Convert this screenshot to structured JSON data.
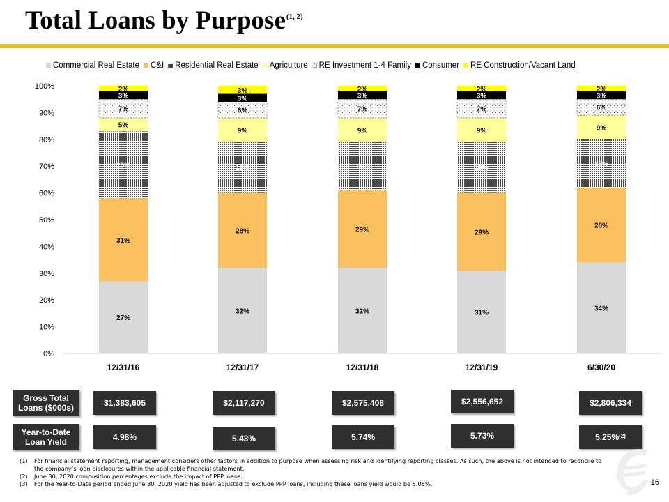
{
  "slide": {
    "title": "Total Loans by Purpose",
    "title_sup": "(1, 2)",
    "page_number": "16"
  },
  "chart_data": {
    "type": "bar",
    "stacked": true,
    "categories": [
      "12/31/16",
      "12/31/17",
      "12/31/18",
      "12/31/19",
      "6/30/20"
    ],
    "series": [
      {
        "name": "Commercial Real Estate",
        "values": [
          27,
          32,
          32,
          31,
          34
        ],
        "labels": [
          "27%",
          "32%",
          "32%",
          "31%",
          "34%"
        ],
        "color": "#d9d9d9",
        "pattern": "none"
      },
      {
        "name": "C&I",
        "values": [
          31,
          28,
          29,
          29,
          28
        ],
        "labels": [
          "31%",
          "28%",
          "29%",
          "29%",
          "28%"
        ],
        "color": "#fac05e",
        "pattern": "none"
      },
      {
        "name": "Residential Real Estate",
        "values": [
          25,
          19,
          18,
          19,
          18
        ],
        "labels": [
          "25%",
          "19%",
          "18%",
          "19%",
          "18%"
        ],
        "color": "#595959",
        "pattern": "dense-dots"
      },
      {
        "name": "Agriculture",
        "values": [
          5,
          9,
          9,
          9,
          9
        ],
        "labels": [
          "5%",
          "9%",
          "9%",
          "9%",
          "9%"
        ],
        "color": "#ffff99",
        "pattern": "none"
      },
      {
        "name": "RE Investment 1-4 Family",
        "values": [
          7,
          6,
          7,
          7,
          6
        ],
        "labels": [
          "7%",
          "6%",
          "7%",
          "7%",
          "6%"
        ],
        "color": "#ffffff",
        "pattern": "sparse-dots"
      },
      {
        "name": "Consumer",
        "values": [
          3,
          3,
          3,
          3,
          3
        ],
        "labels": [
          "3%",
          "3%",
          "3%",
          "3%",
          "3%"
        ],
        "color": "#000000",
        "pattern": "none"
      },
      {
        "name": "RE Construction/Vacant Land",
        "values": [
          2,
          3,
          2,
          2,
          2
        ],
        "labels": [
          "2%",
          "3%",
          "2%",
          "2%",
          "2%"
        ],
        "color": "#ffff00",
        "pattern": "none"
      }
    ],
    "ylim": [
      0,
      100
    ],
    "yticks": [
      "0%",
      "10%",
      "20%",
      "30%",
      "40%",
      "50%",
      "60%",
      "70%",
      "80%",
      "90%",
      "100%"
    ],
    "legend_position": "top",
    "grid": false
  },
  "summary": {
    "gross_label_line1": "Gross Total",
    "gross_label_line2": "Loans ($000s)",
    "yield_label_line1": "Year-to-Date",
    "yield_label_line2": "Loan Yield",
    "gross_values": [
      "$1,383,605",
      "$2,117,270",
      "$2,575,408",
      "$2,556,652",
      "$2,806,334"
    ],
    "yields": [
      "4.98%",
      "5.43%",
      "5.74%",
      "5.73%",
      "5.25%"
    ],
    "last_yield_sup": "(2)"
  },
  "footnotes": [
    {
      "num": "(1)",
      "text": "For financial statement reporting, management considers other factors in addition to purpose when assessing risk and identifying reporting classes.  As such, the above is not intended to reconcile to the company’s loan disclosures within the applicable financial statement."
    },
    {
      "num": "(2)",
      "text": "June 30, 2020 composition percentages exclude the impact of PPP loans."
    },
    {
      "num": "(3)",
      "text": "For the Year-to-Date period ended June 30, 2020 yield has been adjusted to exclude PPP loans, including these loans yield would be 5.05%."
    }
  ]
}
